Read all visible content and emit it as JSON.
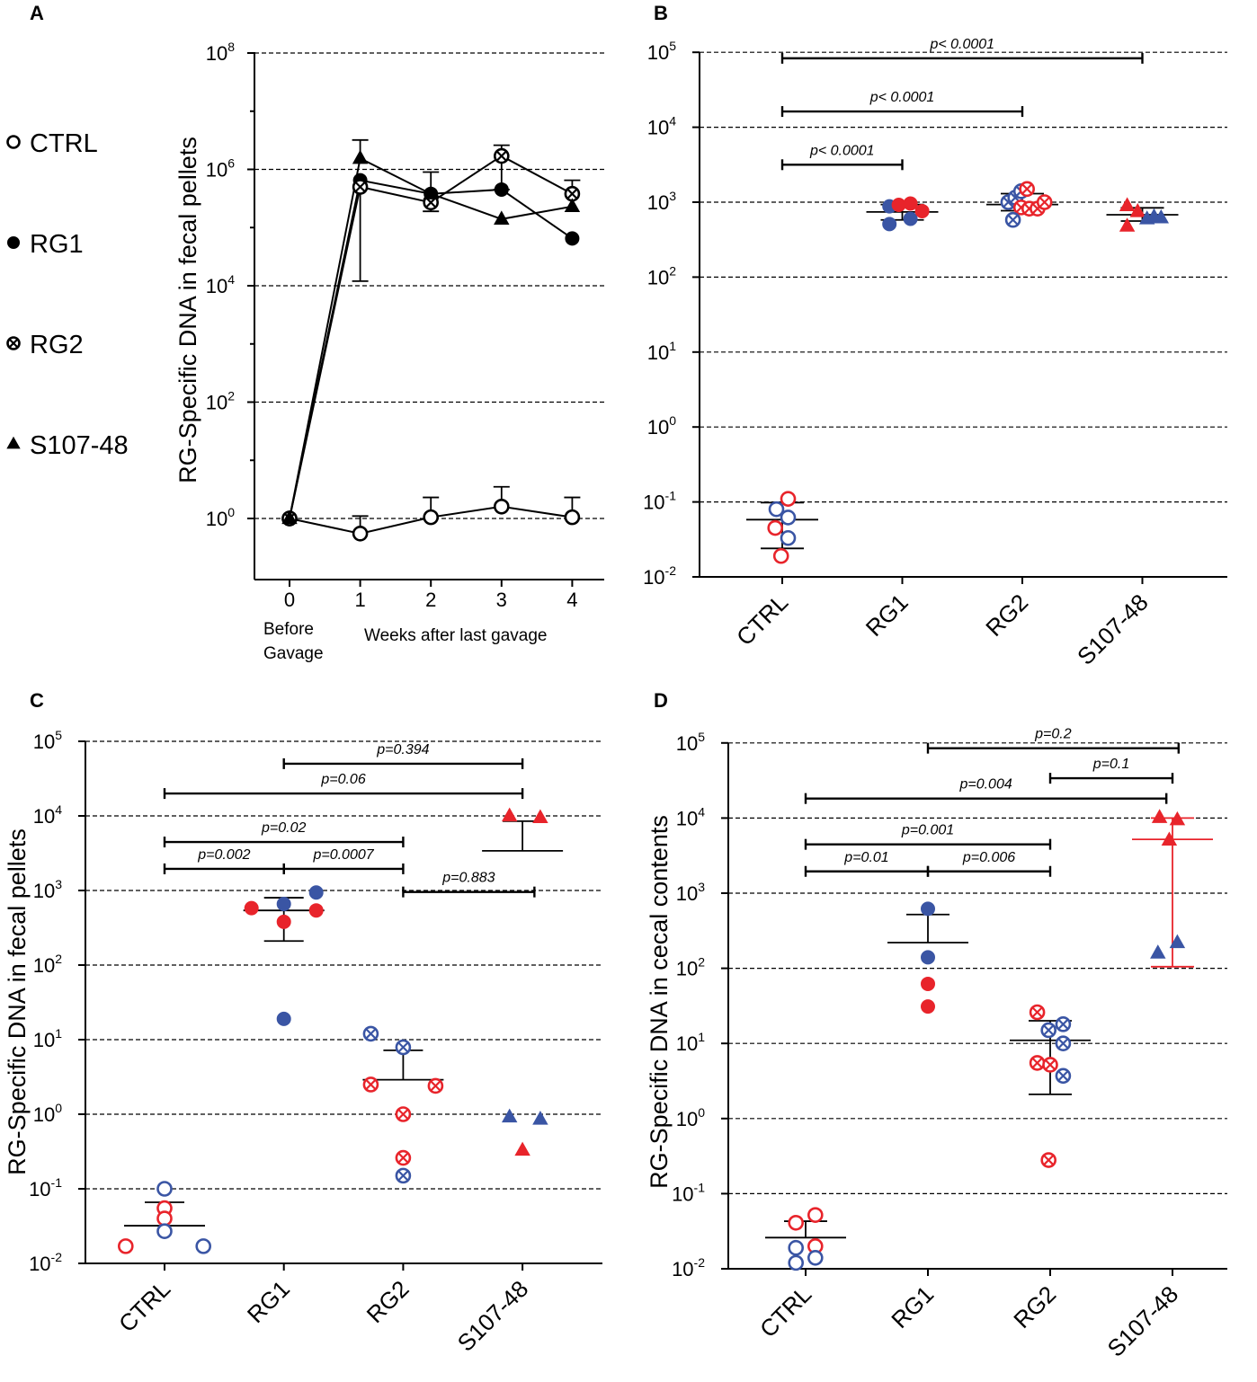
{
  "colors": {
    "red": "#e8242b",
    "blue": "#3a55a4",
    "black": "#000000"
  },
  "chart_data": [
    {
      "panel": "A",
      "type": "line",
      "ylabel": "RG-Specific DNA in fecal pellets",
      "yscale": "log10",
      "ylim_exp": [
        -1,
        8
      ],
      "yticks_exp": [
        0,
        2,
        4,
        6,
        8
      ],
      "x": [
        0,
        1,
        2,
        3,
        4
      ],
      "xlabel_left": [
        "Before",
        "Gavage"
      ],
      "xlabel_right": "Weeks after last gavage",
      "legend": [
        {
          "label": "CTRL",
          "marker": "open-circle"
        },
        {
          "label": "RG1",
          "marker": "filled-circle"
        },
        {
          "label": "RG2",
          "marker": "crossed-circle"
        },
        {
          "label": "S107-48",
          "marker": "filled-triangle"
        }
      ],
      "series": [
        {
          "name": "CTRL",
          "marker": "open-circle",
          "values": [
            1.0,
            0.55,
            1.05,
            1.6,
            1.05
          ],
          "err_upper": [
            null,
            1.1,
            2.3,
            3.5,
            2.3
          ]
        },
        {
          "name": "RG1",
          "marker": "filled-circle",
          "values": [
            1.0,
            650000,
            380000,
            450000,
            65000
          ],
          "err_upper": [
            null,
            null,
            null,
            null,
            null
          ]
        },
        {
          "name": "RG2",
          "marker": "crossed-circle",
          "values": [
            1.0,
            500000,
            270000,
            1700000,
            380000
          ],
          "err_upper": [
            null,
            null,
            900000,
            2600000,
            650000
          ],
          "err_lower": [
            null,
            12000,
            190000,
            450000,
            null
          ]
        },
        {
          "name": "S107-48",
          "marker": "filled-triangle",
          "values": [
            1.0,
            1550000,
            380000,
            140000,
            230000
          ],
          "err_upper": [
            null,
            3200000,
            null,
            null,
            null
          ]
        }
      ]
    },
    {
      "panel": "B",
      "type": "scatter",
      "ylabel": "",
      "yscale": "log10",
      "ylim_exp": [
        -2,
        5
      ],
      "yticks_exp": [
        -2,
        -1,
        0,
        1,
        2,
        3,
        4,
        5
      ],
      "categories": [
        "CTRL",
        "RG1",
        "RG2",
        "S107-48"
      ],
      "groups": [
        {
          "category": "CTRL",
          "mean": 0.058,
          "err": [
            0.024,
            0.098
          ],
          "points": [
            {
              "v": 0.08,
              "c": "blue",
              "m": "open-circle",
              "dx": -0.5
            },
            {
              "v": 0.11,
              "c": "red",
              "m": "open-circle",
              "dx": 0.5
            },
            {
              "v": 0.045,
              "c": "red",
              "m": "open-circle",
              "dx": -0.6
            },
            {
              "v": 0.062,
              "c": "blue",
              "m": "open-circle",
              "dx": 0.5
            },
            {
              "v": 0.033,
              "c": "blue",
              "m": "open-circle",
              "dx": 0.5
            },
            {
              "v": 0.019,
              "c": "red",
              "m": "open-circle",
              "dx": -0.1
            }
          ]
        },
        {
          "category": "RG1",
          "mean": 740,
          "err": [
            580,
            930
          ],
          "points": [
            {
              "v": 880,
              "c": "blue",
              "m": "filled-circle",
              "dx": -1.1
            },
            {
              "v": 920,
              "c": "red",
              "m": "filled-circle",
              "dx": -0.3
            },
            {
              "v": 960,
              "c": "red",
              "m": "filled-circle",
              "dx": 0.7
            },
            {
              "v": 510,
              "c": "blue",
              "m": "filled-circle",
              "dx": -1.1
            },
            {
              "v": 600,
              "c": "blue",
              "m": "filled-circle",
              "dx": 0.7
            },
            {
              "v": 760,
              "c": "red",
              "m": "filled-circle",
              "dx": 1.7
            }
          ]
        },
        {
          "category": "RG2",
          "mean": 930,
          "err": [
            770,
            1300
          ],
          "points": [
            {
              "v": 1000,
              "c": "blue",
              "m": "crossed-circle",
              "dx": -1.2
            },
            {
              "v": 1150,
              "c": "blue",
              "m": "crossed-circle",
              "dx": -0.6
            },
            {
              "v": 1400,
              "c": "blue",
              "m": "crossed-circle",
              "dx": -0.1
            },
            {
              "v": 1500,
              "c": "red",
              "m": "crossed-circle",
              "dx": 0.4
            },
            {
              "v": 850,
              "c": "red",
              "m": "crossed-circle",
              "dx": -0.1
            },
            {
              "v": 820,
              "c": "red",
              "m": "crossed-circle",
              "dx": 0.6
            },
            {
              "v": 820,
              "c": "red",
              "m": "crossed-circle",
              "dx": 1.3
            },
            {
              "v": 1000,
              "c": "red",
              "m": "crossed-circle",
              "dx": 1.9
            },
            {
              "v": 580,
              "c": "blue",
              "m": "crossed-circle",
              "dx": -0.8
            }
          ]
        },
        {
          "category": "S107-48",
          "mean": 680,
          "err": [
            560,
            840
          ],
          "points": [
            {
              "v": 900,
              "c": "red",
              "m": "filled-triangle",
              "dx": -1.3
            },
            {
              "v": 750,
              "c": "red",
              "m": "filled-triangle",
              "dx": -0.4
            },
            {
              "v": 480,
              "c": "red",
              "m": "filled-triangle",
              "dx": -1.3
            },
            {
              "v": 600,
              "c": "blue",
              "m": "filled-triangle",
              "dx": 0.4
            },
            {
              "v": 640,
              "c": "blue",
              "m": "filled-triangle",
              "dx": 1.0
            },
            {
              "v": 620,
              "c": "blue",
              "m": "filled-triangle",
              "dx": 1.6
            }
          ]
        }
      ],
      "annotations": [
        {
          "text": "p< 0.0001",
          "from": 0,
          "to": 3,
          "yexp": 4.92
        },
        {
          "text": "p< 0.0001",
          "from": 0,
          "to": 2,
          "yexp": 4.21
        },
        {
          "text": "p< 0.0001",
          "from": 0,
          "to": 1,
          "yexp": 3.5
        }
      ]
    },
    {
      "panel": "C",
      "type": "scatter",
      "ylabel": "RG-Specific DNA in fecal pellets",
      "yscale": "log10",
      "ylim_exp": [
        -2,
        5
      ],
      "yticks_exp": [
        -2,
        -1,
        0,
        1,
        2,
        3,
        4,
        5
      ],
      "categories": [
        "CTRL",
        "RG1",
        "RG2",
        "S107-48"
      ],
      "groups": [
        {
          "category": "CTRL",
          "mean": 0.032,
          "err": null,
          "err_upper": 0.066,
          "points": [
            {
              "v": 0.1,
              "c": "blue",
              "m": "open-circle",
              "dx": 0
            },
            {
              "v": 0.055,
              "c": "red",
              "m": "open-circle",
              "dx": 0
            },
            {
              "v": 0.04,
              "c": "red",
              "m": "open-circle",
              "dx": 0
            },
            {
              "v": 0.027,
              "c": "blue",
              "m": "open-circle",
              "dx": 0
            },
            {
              "v": 0.017,
              "c": "red",
              "m": "open-circle",
              "dx": -1.2
            },
            {
              "v": 0.017,
              "c": "blue",
              "m": "open-circle",
              "dx": 1.2
            }
          ]
        },
        {
          "category": "RG1",
          "mean": 540,
          "err": [
            210,
            800
          ],
          "points": [
            {
              "v": 580,
              "c": "red",
              "m": "filled-circle",
              "dx": -1.0
            },
            {
              "v": 660,
              "c": "blue",
              "m": "filled-circle",
              "dx": 0
            },
            {
              "v": 380,
              "c": "red",
              "m": "filled-circle",
              "dx": 0
            },
            {
              "v": 540,
              "c": "red",
              "m": "filled-circle",
              "dx": 1.0
            },
            {
              "v": 940,
              "c": "blue",
              "m": "filled-circle",
              "dx": 1.0
            },
            {
              "v": 19,
              "c": "blue",
              "m": "filled-circle",
              "dx": 0
            }
          ]
        },
        {
          "category": "RG2",
          "mean": 2.9,
          "err": null,
          "err_upper": 7.2,
          "points": [
            {
              "v": 12,
              "c": "blue",
              "m": "crossed-circle",
              "dx": -1.0
            },
            {
              "v": 7.9,
              "c": "blue",
              "m": "crossed-circle",
              "dx": 0
            },
            {
              "v": 2.5,
              "c": "red",
              "m": "crossed-circle",
              "dx": -1.0
            },
            {
              "v": 2.4,
              "c": "red",
              "m": "crossed-circle",
              "dx": 1.0
            },
            {
              "v": 1.0,
              "c": "red",
              "m": "crossed-circle",
              "dx": 0
            },
            {
              "v": 0.26,
              "c": "red",
              "m": "crossed-circle",
              "dx": 0
            },
            {
              "v": 0.15,
              "c": "blue",
              "m": "crossed-circle",
              "dx": 0
            }
          ]
        },
        {
          "category": "S107-48",
          "mean": 3400,
          "err": null,
          "err_upper": 8500,
          "points": [
            {
              "v": 10000,
              "c": "red",
              "m": "filled-triangle",
              "dx": -0.4
            },
            {
              "v": 9500,
              "c": "red",
              "m": "filled-triangle",
              "dx": 0.55
            },
            {
              "v": 0.92,
              "c": "blue",
              "m": "filled-triangle",
              "dx": -0.4
            },
            {
              "v": 0.86,
              "c": "blue",
              "m": "filled-triangle",
              "dx": 0.55
            },
            {
              "v": 0.33,
              "c": "red",
              "m": "filled-triangle",
              "dx": 0
            }
          ]
        }
      ],
      "annotations": [
        {
          "text": "p=0.394",
          "from": 1,
          "to": 3,
          "yexp": 4.7
        },
        {
          "text": "p=0.06",
          "from": 0,
          "to": 3,
          "yexp": 4.3
        },
        {
          "text": "p=0.02",
          "from": 0,
          "to": 2,
          "yexp": 3.65
        },
        {
          "text": "p=0.002",
          "from": 0,
          "to": 1,
          "yexp": 3.29
        },
        {
          "text": "p=0.0007",
          "from": 1,
          "to": 2,
          "yexp": 3.29
        },
        {
          "text": "p=0.883",
          "from": 2,
          "to": 3.1,
          "yexp": 2.98
        }
      ]
    },
    {
      "panel": "D",
      "type": "scatter",
      "ylabel": "RG-Specific DNA in cecal contents",
      "yscale": "log10",
      "ylim_exp": [
        -2,
        5
      ],
      "yticks_exp": [
        -2,
        -1,
        0,
        1,
        2,
        3,
        4,
        5
      ],
      "categories": [
        "CTRL",
        "RG1",
        "RG2",
        "S107-48"
      ],
      "groups": [
        {
          "category": "CTRL",
          "mean": 0.026,
          "err": null,
          "err_upper": 0.043,
          "points": [
            {
              "v": 0.041,
              "c": "red",
              "m": "open-circle",
              "dx": -0.6
            },
            {
              "v": 0.052,
              "c": "red",
              "m": "open-circle",
              "dx": 0.6
            },
            {
              "v": 0.019,
              "c": "blue",
              "m": "open-circle",
              "dx": -0.6
            },
            {
              "v": 0.02,
              "c": "red",
              "m": "open-circle",
              "dx": 0.6
            },
            {
              "v": 0.012,
              "c": "blue",
              "m": "open-circle",
              "dx": -0.6
            },
            {
              "v": 0.014,
              "c": "blue",
              "m": "open-circle",
              "dx": 0.6
            }
          ]
        },
        {
          "category": "RG1",
          "mean": 220,
          "err": null,
          "err_upper": 520,
          "points": [
            {
              "v": 620,
              "c": "blue",
              "m": "filled-circle",
              "dx": 0
            },
            {
              "v": 140,
              "c": "blue",
              "m": "filled-circle",
              "dx": 0
            },
            {
              "v": 62,
              "c": "red",
              "m": "filled-circle",
              "dx": 0
            },
            {
              "v": 31,
              "c": "red",
              "m": "filled-circle",
              "dx": 0
            }
          ]
        },
        {
          "category": "RG2",
          "mean": 11,
          "err": [
            2.1,
            20
          ],
          "points": [
            {
              "v": 26,
              "c": "red",
              "m": "crossed-circle",
              "dx": -0.8
            },
            {
              "v": 18,
              "c": "blue",
              "m": "crossed-circle",
              "dx": 0.8
            },
            {
              "v": 15,
              "c": "blue",
              "m": "crossed-circle",
              "dx": -0.1
            },
            {
              "v": 10,
              "c": "blue",
              "m": "crossed-circle",
              "dx": 0.8
            },
            {
              "v": 5.5,
              "c": "red",
              "m": "crossed-circle",
              "dx": -0.8
            },
            {
              "v": 5.2,
              "c": "red",
              "m": "crossed-circle",
              "dx": 0
            },
            {
              "v": 3.7,
              "c": "blue",
              "m": "crossed-circle",
              "dx": 0.8
            },
            {
              "v": 0.28,
              "c": "red",
              "m": "crossed-circle",
              "dx": -0.1
            }
          ]
        },
        {
          "category": "S107-48",
          "mean": 5200,
          "err": [
            105,
            10000
          ],
          "errColor": "red",
          "points": [
            {
              "v": 10200,
              "c": "red",
              "m": "filled-triangle",
              "dx": -0.8
            },
            {
              "v": 9500,
              "c": "red",
              "m": "filled-triangle",
              "dx": 0.3
            },
            {
              "v": 5100,
              "c": "red",
              "m": "filled-triangle",
              "dx": -0.2
            },
            {
              "v": 160,
              "c": "blue",
              "m": "filled-triangle",
              "dx": -0.9
            },
            {
              "v": 220,
              "c": "blue",
              "m": "filled-triangle",
              "dx": 0.3
            }
          ]
        }
      ],
      "annotations": [
        {
          "text": "p=0.2",
          "from": 1,
          "to": 3.05,
          "yexp": 4.93
        },
        {
          "text": "p=0.1",
          "from": 2,
          "to": 3.0,
          "yexp": 4.53
        },
        {
          "text": "p=0.004",
          "from": 0,
          "to": 2.95,
          "yexp": 4.26
        },
        {
          "text": "p=0.001",
          "from": 0,
          "to": 2,
          "yexp": 3.65
        },
        {
          "text": "p=0.01",
          "from": 0,
          "to": 1,
          "yexp": 3.29
        },
        {
          "text": "p=0.006",
          "from": 1,
          "to": 2,
          "yexp": 3.29
        }
      ]
    }
  ]
}
